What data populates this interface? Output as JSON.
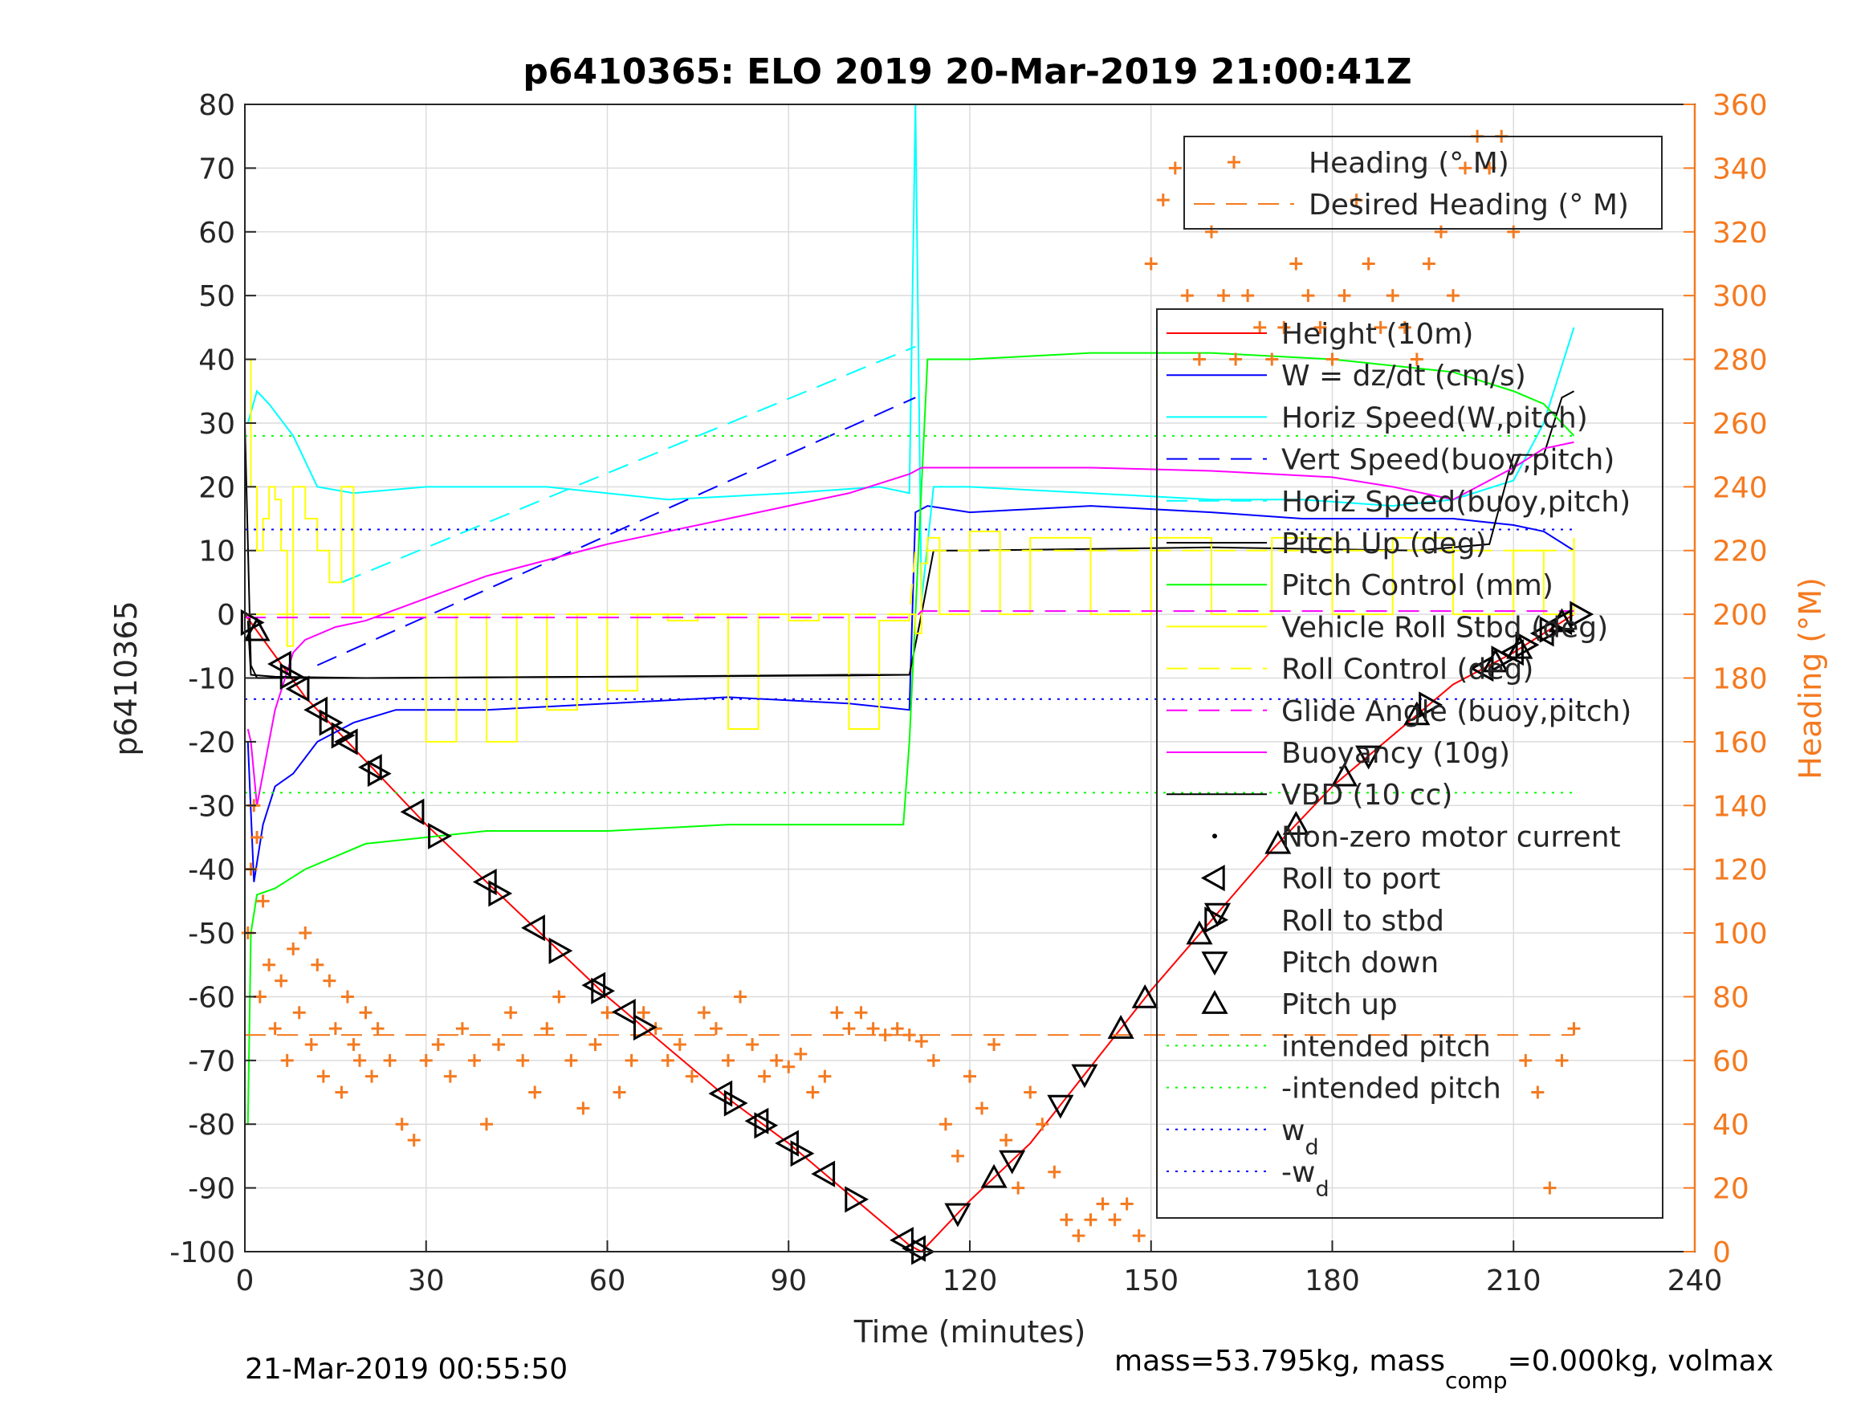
{
  "chart_data": {
    "type": "line",
    "title": "p6410365: ELO 2019 20-Mar-2019 21:00:41Z",
    "xlabel": "Time (minutes)",
    "ylabel_left": "p6410365",
    "ylabel_right": "Heading (°M)",
    "xlim": [
      0,
      240
    ],
    "ylim_left": [
      -100,
      80
    ],
    "ylim_right": [
      0,
      360
    ],
    "xticks": [
      "0",
      "30",
      "60",
      "90",
      "120",
      "150",
      "180",
      "210",
      "240"
    ],
    "yticks_left": [
      "80",
      "70",
      "60",
      "50",
      "40",
      "30",
      "20",
      "10",
      "0",
      "-10",
      "-20",
      "-30",
      "-40",
      "-50",
      "-60",
      "-70",
      "-80",
      "-90",
      "-100"
    ],
    "yticks_right": [
      "360",
      "340",
      "320",
      "300",
      "280",
      "260",
      "240",
      "220",
      "200",
      "180",
      "160",
      "140",
      "120",
      "100",
      "80",
      "60",
      "40",
      "20",
      "0"
    ],
    "grid": true,
    "footer_left": "21-Mar-2019 00:55:50",
    "footer_right_parts": [
      "mass=53.795kg, mass",
      "comp",
      "=0.000kg, volmax"
    ],
    "legend_heading": [
      {
        "label": "Heading (° M)",
        "color": "#f47a20",
        "style": "plus"
      },
      {
        "label": "Desired Heading (° M)",
        "color": "#f47a20",
        "style": "dash"
      }
    ],
    "legend_main": [
      {
        "label": "Height (10m)",
        "color": "#ff0000",
        "style": "solid"
      },
      {
        "label": "W = dz/dt (cm/s)",
        "color": "#0000ff",
        "style": "solid"
      },
      {
        "label": "Horiz Speed(W,pitch)",
        "color": "#00ffff",
        "style": "solid"
      },
      {
        "label": "Vert Speed(buoy,pitch)",
        "color": "#0000ff",
        "style": "dash"
      },
      {
        "label": "Horiz Speed(buoy,pitch)",
        "color": "#00ffff",
        "style": "dash"
      },
      {
        "label": "Pitch Up (deg)",
        "color": "#000000",
        "style": "solid"
      },
      {
        "label": "Pitch Control (mm)",
        "color": "#00ff00",
        "style": "solid"
      },
      {
        "label": "Vehicle Roll Stbd (deg)",
        "color": "#ffff00",
        "style": "solid"
      },
      {
        "label": "Roll Control (deg)",
        "color": "#ffff00",
        "style": "dash"
      },
      {
        "label": "Glide Angle (buoy,pitch)",
        "color": "#ff00ff",
        "style": "dash"
      },
      {
        "label": "Buoyancy (10g)",
        "color": "#ff00ff",
        "style": "solid"
      },
      {
        "label": "VBD (10 cc)",
        "color": "#000000",
        "style": "solid"
      },
      {
        "label": "Non-zero motor current",
        "color": "#000000",
        "style": "dot"
      },
      {
        "label": "Roll to port",
        "color": "#000000",
        "style": "tri-left"
      },
      {
        "label": "Roll to stbd",
        "color": "#000000",
        "style": "tri-right"
      },
      {
        "label": "Pitch down",
        "color": "#000000",
        "style": "tri-down"
      },
      {
        "label": "Pitch up",
        "color": "#000000",
        "style": "tri-up"
      },
      {
        "label": "intended pitch",
        "color": "#00ff00",
        "style": "dotted"
      },
      {
        "label": "-intended pitch",
        "color": "#00ff00",
        "style": "dotted"
      },
      {
        "label": "w",
        "sub": "d",
        "color": "#0000ff",
        "style": "dotted"
      },
      {
        "label": "-w",
        "sub": "d",
        "color": "#0000ff",
        "style": "dotted"
      }
    ],
    "series": [
      {
        "name": "Height (10m)",
        "color": "#ff0000",
        "style": "solid",
        "x": [
          0,
          10,
          20,
          30,
          40,
          50,
          60,
          70,
          80,
          90,
          100,
          110,
          112,
          120,
          130,
          140,
          150,
          160,
          170,
          180,
          190,
          200,
          210,
          220
        ],
        "y": [
          0,
          -13,
          -23,
          -33,
          -42,
          -51,
          -60,
          -68,
          -76,
          -83,
          -91,
          -99,
          -100,
          -92,
          -83,
          -71,
          -59,
          -48,
          -37,
          -27,
          -19,
          -11,
          -6,
          0
        ]
      },
      {
        "name": "W = dz/dt (cm/s)",
        "color": "#0000ff",
        "style": "solid",
        "x": [
          0.5,
          1.5,
          3,
          5,
          8,
          12,
          18,
          25,
          40,
          60,
          80,
          100,
          110,
          111,
          113,
          120,
          140,
          160,
          175,
          190,
          200,
          210,
          215,
          220
        ],
        "y": [
          -20,
          -42,
          -33,
          -27,
          -25,
          -20,
          -17,
          -15,
          -15,
          -14,
          -13,
          -14,
          -15,
          16,
          17,
          16,
          17,
          16,
          15,
          15,
          15,
          14,
          13,
          10
        ]
      },
      {
        "name": "Horiz Speed(W,pitch)",
        "color": "#00ffff",
        "style": "solid",
        "x": [
          0.5,
          2,
          4,
          8,
          12,
          18,
          30,
          50,
          70,
          90,
          105,
          110,
          111,
          112,
          114,
          120,
          140,
          160,
          175,
          190,
          200,
          210,
          215,
          220
        ],
        "y": [
          30,
          35,
          33,
          28,
          20,
          19,
          20,
          20,
          18,
          19,
          20,
          19,
          80,
          2,
          20,
          20,
          19,
          18,
          18,
          17,
          18,
          21,
          30,
          45
        ]
      },
      {
        "name": "Vert Speed(buoy,pitch)",
        "color": "#0000ff",
        "style": "dash",
        "x": [
          12,
          111
        ],
        "y": [
          -8,
          34
        ]
      },
      {
        "name": "Horiz Speed(buoy,pitch)",
        "color": "#00ffff",
        "style": "dash",
        "x": [
          16,
          111
        ],
        "y": [
          5,
          42
        ]
      },
      {
        "name": "Pitch Up (deg)",
        "color": "#000000",
        "style": "solid",
        "x": [
          0,
          1,
          2,
          5,
          20,
          60,
          100,
          109,
          110,
          112,
          114,
          120,
          160,
          194,
          206,
          210,
          215,
          218,
          220
        ],
        "y": [
          30,
          -8,
          -10,
          -10,
          -10,
          -9.8,
          -9.5,
          -9.5,
          -9.5,
          0,
          10,
          10,
          10.5,
          10,
          11,
          25,
          25,
          34,
          35
        ]
      },
      {
        "name": "Pitch Control (mm)",
        "color": "#00ff00",
        "style": "solid",
        "x": [
          0.5,
          1,
          2,
          5,
          10,
          20,
          40,
          60,
          80,
          100,
          109,
          110,
          111,
          113,
          120,
          140,
          160,
          180,
          200,
          210,
          215,
          220
        ],
        "y": [
          -80,
          -50,
          -44,
          -43,
          -40,
          -36,
          -34,
          -34,
          -33,
          -33,
          -33,
          -20,
          0,
          40,
          40,
          41,
          41,
          40,
          38,
          35,
          33,
          28
        ]
      },
      {
        "name": "Vehicle Roll Stbd (deg)",
        "color": "#ffff00",
        "style": "steps",
        "x": [
          0.5,
          1,
          2,
          3,
          4,
          5,
          6,
          7,
          8,
          10,
          12,
          14,
          16,
          18,
          25,
          30,
          35,
          40,
          45,
          50,
          55,
          60,
          65,
          70,
          75,
          80,
          85,
          90,
          95,
          100,
          105,
          110,
          111,
          112,
          113,
          115,
          120,
          125,
          130,
          140,
          150,
          160,
          170,
          180,
          190,
          200,
          210,
          215,
          220
        ],
        "y": [
          40,
          20,
          10,
          15,
          20,
          18,
          10,
          -5,
          20,
          15,
          10,
          5,
          20,
          0,
          0,
          -20,
          0,
          -20,
          0,
          -15,
          0,
          -12,
          0,
          -1,
          0,
          -18,
          0,
          -1,
          0,
          -18,
          -1,
          0,
          -3,
          8,
          12,
          0,
          13,
          0,
          12,
          0,
          12,
          0,
          12,
          0,
          12,
          0,
          10,
          0,
          12
        ]
      },
      {
        "name": "Roll Control (deg)",
        "color": "#ffff00",
        "style": "dash",
        "x": [
          0,
          110,
          111,
          220
        ],
        "y": [
          0,
          0,
          10,
          10
        ]
      },
      {
        "name": "Glide Angle (buoy,pitch)",
        "color": "#ff00ff",
        "style": "dash",
        "x": [
          0,
          111,
          112,
          220
        ],
        "y": [
          -0.5,
          -0.5,
          0.5,
          0.5
        ]
      },
      {
        "name": "Buoyancy (10g)",
        "color": "#ff00ff",
        "style": "solid",
        "x": [
          0.5,
          1,
          2,
          5,
          8,
          10,
          15,
          20,
          40,
          60,
          80,
          100,
          110,
          112,
          120,
          140,
          160,
          180,
          190,
          195,
          200,
          210,
          215,
          220
        ],
        "y": [
          -18,
          -20,
          -30,
          -15,
          -6,
          -4,
          -2,
          -1,
          6,
          11,
          15,
          19,
          22,
          23,
          23,
          23,
          22.5,
          21.5,
          20,
          19,
          18,
          23,
          26,
          27
        ]
      },
      {
        "name": "VBD (10 cc)",
        "color": "#000000",
        "style": "solid",
        "x": [
          0.5,
          1,
          5,
          20,
          60,
          100,
          110
        ],
        "y": [
          -1,
          -9.5,
          -9.8,
          -10,
          -9.8,
          -9.6,
          -9.5
        ]
      },
      {
        "name": "intended pitch",
        "color": "#00ff00",
        "style": "dotted",
        "x": [
          0,
          220
        ],
        "y": [
          28,
          28
        ]
      },
      {
        "name": "-intended pitch",
        "color": "#00ff00",
        "style": "dotted",
        "x": [
          0,
          220
        ],
        "y": [
          -28,
          -28
        ]
      },
      {
        "name": "wd",
        "color": "#0000ff",
        "style": "dotted",
        "x": [
          0,
          220
        ],
        "y": [
          13.3,
          13.3
        ]
      },
      {
        "name": "-wd",
        "color": "#0000ff",
        "style": "dotted",
        "x": [
          0,
          220
        ],
        "y": [
          -13.3,
          -13.3
        ]
      }
    ],
    "desired_heading": {
      "name": "Desired Heading (° M)",
      "color": "#f47a20",
      "style": "dash",
      "x": [
        0,
        220
      ],
      "y": [
        68,
        68
      ],
      "axis": "right"
    },
    "heading": {
      "name": "Heading (° M)",
      "color": "#f47a20",
      "axis": "right",
      "x": [
        0.5,
        1,
        1.5,
        2,
        2.5,
        3,
        4,
        5,
        6,
        7,
        8,
        9,
        10,
        11,
        12,
        13,
        14,
        15,
        16,
        17,
        18,
        19,
        20,
        21,
        22,
        24,
        26,
        28,
        30,
        32,
        34,
        36,
        38,
        40,
        42,
        44,
        46,
        48,
        50,
        52,
        54,
        56,
        58,
        60,
        62,
        64,
        66,
        68,
        70,
        72,
        74,
        76,
        78,
        80,
        82,
        84,
        86,
        88,
        90,
        92,
        94,
        96,
        98,
        100,
        102,
        104,
        106,
        108,
        110,
        112,
        114,
        116,
        118,
        120,
        122,
        124,
        126,
        128,
        130,
        132,
        134,
        136,
        138,
        140,
        142,
        144,
        146,
        148,
        150,
        152,
        154,
        156,
        158,
        160,
        162,
        164,
        166,
        168,
        170,
        172,
        174,
        176,
        178,
        180,
        182,
        184,
        186,
        188,
        190,
        192,
        194,
        196,
        198,
        200,
        202,
        204,
        206,
        208,
        210,
        212,
        214,
        216,
        218,
        220
      ],
      "y": [
        100,
        120,
        140,
        130,
        80,
        110,
        90,
        70,
        85,
        60,
        95,
        75,
        100,
        65,
        90,
        55,
        85,
        70,
        50,
        80,
        65,
        60,
        75,
        55,
        70,
        60,
        40,
        35,
        60,
        65,
        55,
        70,
        60,
        40,
        65,
        75,
        60,
        50,
        70,
        80,
        60,
        45,
        65,
        75,
        50,
        60,
        75,
        70,
        60,
        65,
        55,
        75,
        70,
        60,
        80,
        65,
        55,
        60,
        58,
        62,
        50,
        55,
        75,
        70,
        75,
        70,
        68,
        70,
        68,
        66,
        60,
        40,
        30,
        55,
        45,
        65,
        35,
        20,
        50,
        40,
        25,
        10,
        5,
        10,
        15,
        10,
        15,
        5,
        310,
        330,
        340,
        300,
        280,
        320,
        300,
        280,
        300,
        290,
        280,
        290,
        310,
        300,
        290,
        280,
        300,
        330,
        310,
        290,
        300,
        290,
        280,
        310,
        320,
        300,
        340,
        350,
        340,
        350,
        320,
        60,
        50,
        20,
        60,
        70
      ]
    }
  },
  "markers": [
    {
      "type": "tri-left",
      "x": [
        6,
        9,
        12,
        17,
        21,
        28,
        40,
        48,
        58,
        63,
        79,
        85,
        90,
        96,
        109,
        111,
        205,
        210,
        215,
        218
      ]
    },
    {
      "type": "tri-right",
      "x": [
        1,
        7.5,
        14,
        16,
        22,
        32,
        42,
        52,
        59,
        66,
        81,
        86,
        92,
        101,
        112,
        196,
        208,
        212,
        216,
        221
      ]
    },
    {
      "type": "tri-down",
      "x": [
        118,
        127,
        135,
        139,
        161,
        186
      ]
    },
    {
      "type": "tri-up",
      "x": [
        2,
        124,
        145,
        149,
        158,
        171,
        174,
        182,
        194,
        207,
        211,
        218
      ]
    }
  ]
}
